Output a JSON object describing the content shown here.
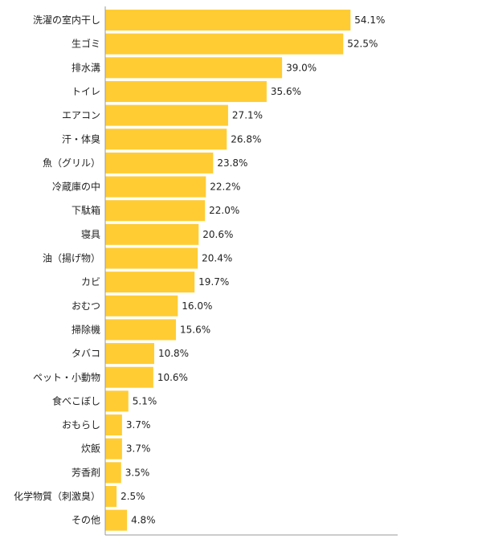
{
  "colors": {
    "bar": "#FFCC33",
    "axis": "#9a9a9a",
    "text": "#222222"
  },
  "chart_data": {
    "type": "bar",
    "orientation": "horizontal",
    "title": "",
    "xlabel": "",
    "ylabel": "",
    "grid": false,
    "xlim": [
      0,
      64.5
    ],
    "value_format": "percent_1dp",
    "categories": [
      "洗濯の室内干し",
      "生ゴミ",
      "排水溝",
      "トイレ",
      "エアコン",
      "汗・体臭",
      "魚（グリル）",
      "冷蔵庫の中",
      "下駄箱",
      "寝具",
      "油（揚げ物）",
      "カビ",
      "おむつ",
      "掃除機",
      "タバコ",
      "ペット・小動物",
      "食べこぼし",
      "おもらし",
      "炊飯",
      "芳香剤",
      "化学物質（刺激臭）",
      "その他"
    ],
    "values": [
      54.1,
      52.5,
      39.0,
      35.6,
      27.1,
      26.8,
      23.8,
      22.2,
      22.0,
      20.6,
      20.4,
      19.7,
      16.0,
      15.6,
      10.8,
      10.6,
      5.1,
      3.7,
      3.7,
      3.5,
      2.5,
      4.8
    ],
    "value_labels": [
      "54.1%",
      "52.5%",
      "39.0%",
      "35.6%",
      "27.1%",
      "26.8%",
      "23.8%",
      "22.2%",
      "22.0%",
      "20.6%",
      "20.4%",
      "19.7%",
      "16.0%",
      "15.6%",
      "10.8%",
      "10.6%",
      "5.1%",
      "3.7%",
      "3.7%",
      "3.5%",
      "2.5%",
      "4.8%"
    ]
  }
}
